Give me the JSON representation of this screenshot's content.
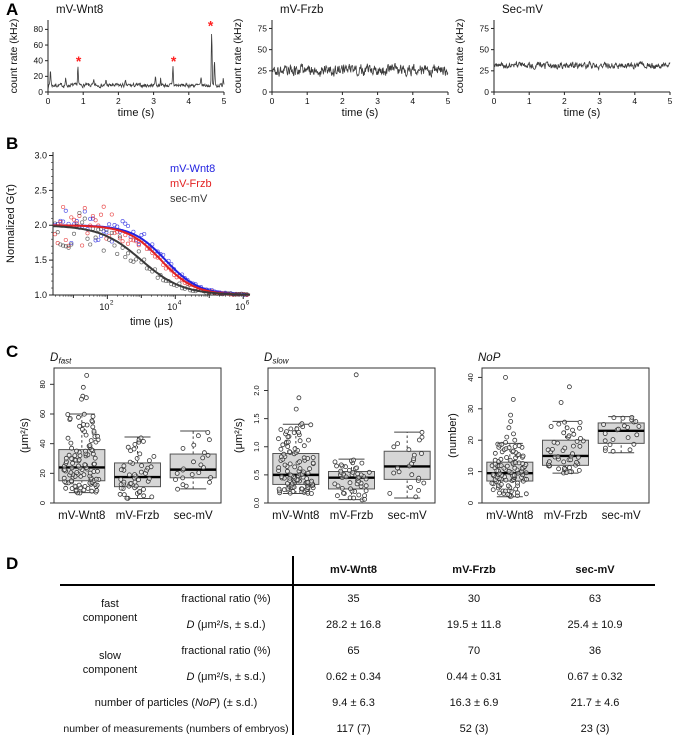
{
  "panels": {
    "a": "A",
    "b": "B",
    "c": "C",
    "d": "D"
  },
  "colors": {
    "blue": "#2222e0",
    "red": "#e32222",
    "black": "#3a3a3a",
    "box_fill": "#d6d6d6",
    "star": "#ff2020",
    "trace": "#3c3c3c"
  },
  "chart_data": [
    {
      "id": "a1",
      "type": "line",
      "title": "mV-Wnt8",
      "xlabel": "time (s)",
      "ylabel": "count rate (kHz)",
      "xlim": [
        0,
        5
      ],
      "xticks": [
        0,
        1,
        2,
        3,
        4,
        5
      ],
      "ylim": [
        0,
        92
      ],
      "yticks": [
        0,
        20,
        40,
        60,
        80
      ],
      "baseline": 8.5,
      "noise_sigma": 2.1,
      "noise_ar": 0.45,
      "peaks": [
        [
          0.07,
          20
        ],
        [
          0.5,
          8
        ],
        [
          0.85,
          24
        ],
        [
          1.3,
          5
        ],
        [
          1.65,
          6
        ],
        [
          2.2,
          4
        ],
        [
          3.05,
          13
        ],
        [
          3.2,
          9
        ],
        [
          3.55,
          25
        ],
        [
          4.35,
          8
        ],
        [
          4.65,
          66
        ],
        [
          4.73,
          30
        ],
        [
          4.98,
          10
        ]
      ],
      "stars": [
        [
          0.87,
          41
        ],
        [
          3.57,
          41
        ],
        [
          4.62,
          86
        ]
      ],
      "seed": 7
    },
    {
      "id": "a2",
      "type": "line",
      "title": "mV-Frzb",
      "xlabel": "time (s)",
      "ylabel": "count rate (kHz)",
      "xlim": [
        0,
        5
      ],
      "xticks": [
        0,
        1,
        2,
        3,
        4,
        5
      ],
      "ylim": [
        0,
        85
      ],
      "yticks": [
        0,
        25,
        50,
        75
      ],
      "baseline": 26,
      "noise_sigma": 5.5,
      "noise_ar": 0.5,
      "peaks": [],
      "stars": [],
      "seed": 8
    },
    {
      "id": "a3",
      "type": "line",
      "title": "Sec-mV",
      "xlabel": "time (s)",
      "ylabel": "count rate (kHz)",
      "xlim": [
        0,
        5
      ],
      "xticks": [
        0,
        1,
        2,
        3,
        4,
        5
      ],
      "ylim": [
        0,
        85
      ],
      "yticks": [
        0,
        25,
        50,
        75
      ],
      "baseline": 31,
      "noise_sigma": 3.2,
      "noise_ar": 0.5,
      "peaks": [],
      "stars": [],
      "seed": 9
    },
    {
      "id": "b",
      "type": "scatter-line",
      "xlabel": "time (μs)",
      "ylabel": "Normalized G(τ)",
      "xlim_exp": [
        0.4,
        6.2
      ],
      "xtick_exps": [
        2,
        4,
        6
      ],
      "xtick_base": "10",
      "ylim": [
        1.0,
        3.05
      ],
      "yticks": [
        1.0,
        1.5,
        2.0,
        2.5,
        3.0
      ],
      "ytick_labels": [
        "1.0",
        "1.5",
        "2.0",
        "2.5",
        "3.0"
      ],
      "plateau": 2.0,
      "baseline_g": 1.0,
      "legend_position": "upper-right-inside",
      "series": [
        {
          "name": "mV-Wnt8",
          "color": "#2222e0",
          "td_us": 5200,
          "alpha": 0.88,
          "seed": 11
        },
        {
          "name": "mV-Frzb",
          "color": "#e32222",
          "td_us": 3800,
          "alpha": 0.88,
          "seed": 12
        },
        {
          "name": "sec-mV",
          "color": "#3a3a3a",
          "td_us": 1000,
          "alpha": 0.72,
          "seed": 13
        }
      ]
    },
    {
      "id": "c1",
      "type": "box",
      "title_main": "D",
      "title_sub": "fast",
      "ylabel": "(μm²/s)",
      "ylim": [
        0,
        91
      ],
      "ytick_values": [
        0,
        20,
        40,
        60,
        80
      ],
      "ytick_labels": [
        "0",
        "20",
        "40",
        "60",
        "80"
      ],
      "groups": [
        {
          "label": "mV-Wnt8",
          "n": 117,
          "q": [
            7,
            15,
            24,
            36,
            60
          ],
          "outliers": [
            86,
            78,
            72,
            71,
            70
          ],
          "seed": 21
        },
        {
          "label": "mV-Frzb",
          "n": 52,
          "q": [
            3,
            11,
            17.5,
            27,
            44.5
          ],
          "outliers": [],
          "seed": 22
        },
        {
          "label": "sec-mV",
          "n": 23,
          "q": [
            9.5,
            17,
            22.5,
            33,
            48.5
          ],
          "outliers": [],
          "seed": 23
        }
      ]
    },
    {
      "id": "c2",
      "type": "box",
      "title_main": "D",
      "title_sub": "slow",
      "ylabel": "(μm²/s)",
      "ylim": [
        0,
        2.4
      ],
      "ytick_values": [
        0,
        0.5,
        1,
        1.5,
        2
      ],
      "ytick_labels": [
        "0.0",
        "0.5",
        "1.0",
        "1.5",
        "2.0"
      ],
      "groups": [
        {
          "label": "mV-Wnt8",
          "n": 117,
          "q": [
            0.17,
            0.33,
            0.5,
            0.88,
            1.4
          ],
          "outliers": [
            1.87,
            1.67
          ],
          "seed": 31
        },
        {
          "label": "mV-Frzb",
          "n": 52,
          "q": [
            0.06,
            0.25,
            0.45,
            0.56,
            0.78
          ],
          "outliers": [
            2.28
          ],
          "seed": 32
        },
        {
          "label": "sec-mV",
          "n": 23,
          "q": [
            0.09,
            0.42,
            0.65,
            0.92,
            1.26
          ],
          "outliers": [],
          "seed": 33
        }
      ]
    },
    {
      "id": "c3",
      "type": "box",
      "title_main": "NoP",
      "title_sub": "",
      "ylabel": "(number)",
      "ylim": [
        0,
        43
      ],
      "ytick_values": [
        0,
        10,
        20,
        30,
        40
      ],
      "ytick_labels": [
        "0",
        "10",
        "20",
        "30",
        "40"
      ],
      "groups": [
        {
          "label": "mV-Wnt8",
          "n": 117,
          "q": [
            2,
            7,
            9.5,
            13,
            19
          ],
          "outliers": [
            40,
            33,
            28,
            26,
            24,
            22,
            21,
            20
          ],
          "seed": 41
        },
        {
          "label": "mV-Frzb",
          "n": 52,
          "q": [
            9.5,
            12,
            15,
            20,
            26
          ],
          "outliers": [
            37,
            32
          ],
          "seed": 42
        },
        {
          "label": "sec-mV",
          "n": 23,
          "q": [
            16,
            19,
            23,
            25.5,
            27.5
          ],
          "outliers": [],
          "seed": 43
        }
      ]
    }
  ],
  "table": {
    "headers": [
      "mV-Wnt8",
      "mV-Frzb",
      "sec-mV"
    ],
    "fast": {
      "group": "fast component",
      "fractional": {
        "label": "fractional ratio (%)",
        "values": [
          "35",
          "30",
          "63"
        ]
      },
      "d": {
        "label_italic": "D",
        "label_rest": " (μm²/s, ± s.d.)",
        "values": [
          "28.2 ± 16.8",
          "19.5 ± 11.8",
          "25.4 ± 10.9"
        ]
      }
    },
    "slow": {
      "group": "slow component",
      "fractional": {
        "label": "fractional ratio (%)",
        "values": [
          "65",
          "70",
          "36"
        ]
      },
      "d": {
        "label_italic": "D",
        "label_rest": " (μm²/s, ± s.d.)",
        "values": [
          "0.62 ± 0.34",
          "0.44 ± 0.31",
          "0.67 ± 0.32"
        ]
      }
    },
    "nop": {
      "label_pre": "number of particles (",
      "label_italic": "NoP",
      "label_post": ") (± s.d.)",
      "values": [
        "9.4 ± 6.3",
        "16.3 ± 6.9",
        "21.7 ± 4.6"
      ]
    },
    "measurements": {
      "label": "number of measurements (numbers of embryos)",
      "values": [
        "117 (7)",
        "52 (3)",
        "23 (3)"
      ]
    }
  }
}
